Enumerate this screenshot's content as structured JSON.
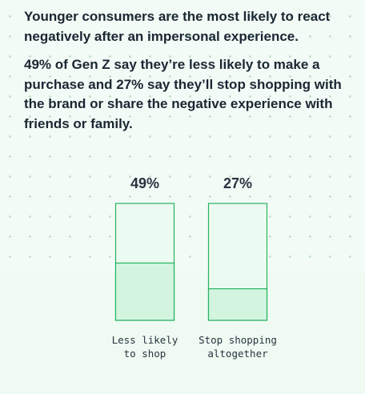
{
  "header": {
    "headline": "Younger consumers are the most likely to react negatively after an impersonal experience.",
    "body": "49% of Gen Z say they’re less likely to make a purchase and 27% say they’ll stop shopping with the brand or share the negative experience with friends or family."
  },
  "chart_data": {
    "type": "bar",
    "categories": [
      "Less likely to shop",
      "Stop shopping altogether"
    ],
    "category_lines": [
      [
        "Less likely",
        "to shop"
      ],
      [
        "Stop shopping",
        "altogether"
      ]
    ],
    "values": [
      49,
      27
    ],
    "value_labels": [
      "49%",
      "27%"
    ],
    "ylim": [
      0,
      100
    ],
    "colors": {
      "fill": "#d3f5e0",
      "track": "#ecfbf1",
      "stroke": "#27b35f"
    }
  }
}
